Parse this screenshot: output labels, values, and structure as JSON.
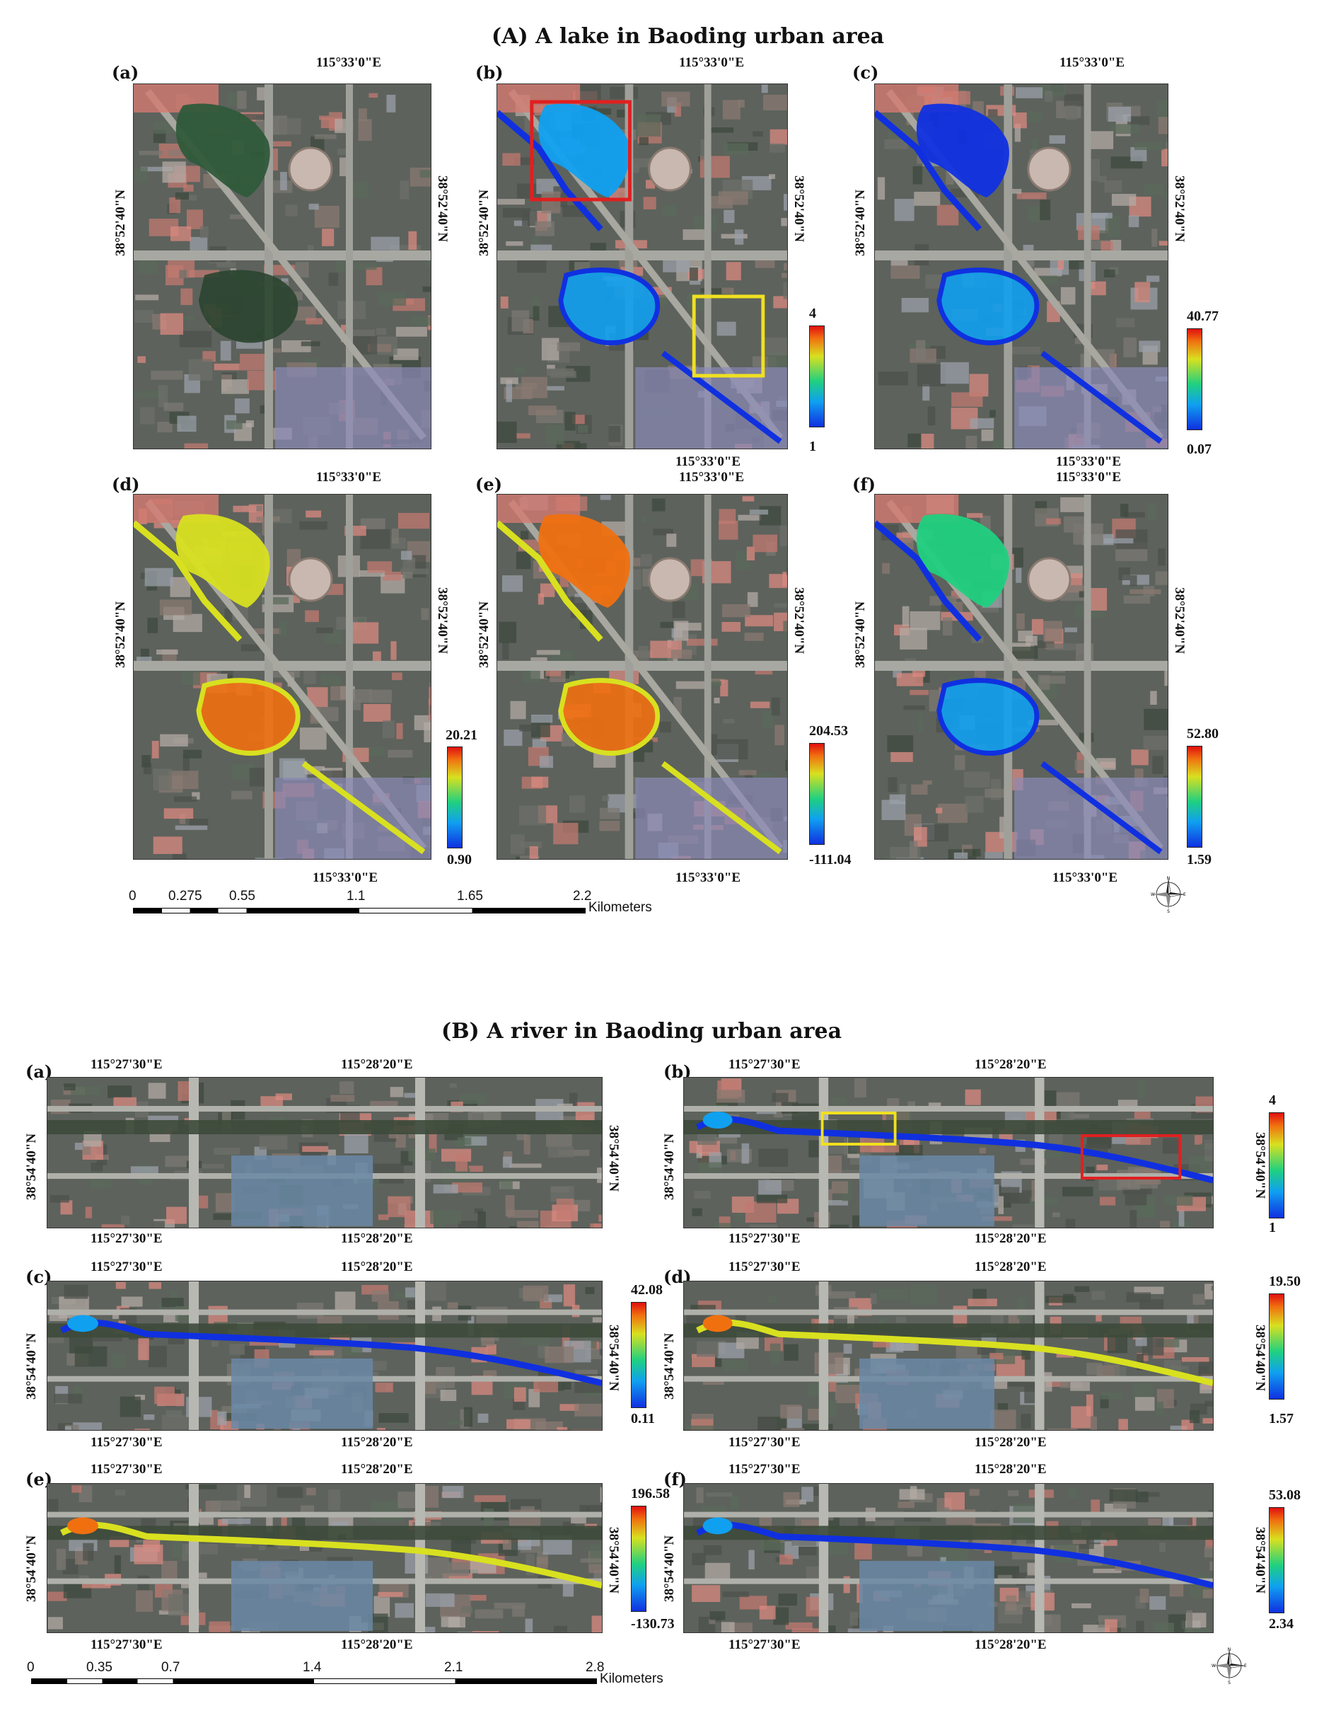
{
  "sectionA": {
    "title": "(A) A lake in Baoding urban area",
    "lon": "115°33'0\"E",
    "lat": "38°52'40\"N",
    "panels": {
      "a": {
        "label": "(a)"
      },
      "b": {
        "label": "(b)",
        "cmax": "4",
        "cmin": "1"
      },
      "c": {
        "label": "(c)",
        "cmax": "40.77",
        "cmin": "0.07"
      },
      "d": {
        "label": "(d)",
        "cmax": "20.21",
        "cmin": "0.90"
      },
      "e": {
        "label": "(e)",
        "cmax": "204.53",
        "cmin": "-111.04"
      },
      "f": {
        "label": "(f)",
        "cmax": "52.80",
        "cmin": "1.59"
      }
    },
    "scalebar": {
      "ticks": [
        "0",
        "0.275",
        "0.55",
        "1.1",
        "1.65",
        "2.2"
      ],
      "unit": "Kilometers"
    }
  },
  "sectionB": {
    "title": "(B) A river in Baoding urban area",
    "lon1": "115°27'30\"E",
    "lon2": "115°28'20\"E",
    "lat": "38°54'40\"N",
    "panels": {
      "a": {
        "label": "(a)"
      },
      "b": {
        "label": "(b)",
        "cmax": "4",
        "cmin": "1"
      },
      "c": {
        "label": "(c)",
        "cmax": "42.08",
        "cmin": "0.11"
      },
      "d": {
        "label": "(d)",
        "cmax": "19.50",
        "cmin": "1.57"
      },
      "e": {
        "label": "(e)",
        "cmax": "196.58",
        "cmin": "-130.73"
      },
      "f": {
        "label": "(f)",
        "cmax": "53.08",
        "cmin": "2.34"
      }
    },
    "scalebar": {
      "ticks": [
        "0",
        "0.35",
        "0.7",
        "1.4",
        "2.1",
        "2.8"
      ],
      "unit": "Kilometers"
    }
  },
  "compass": {
    "n": "N",
    "s": "S",
    "e": "E",
    "w": "W"
  },
  "colors": {
    "blue": "#1030e0",
    "cyan": "#10a0f0",
    "green": "#20d080",
    "yellow": "#d8e020",
    "orange": "#f07010",
    "red": "#e01010",
    "box_red": "#e02020",
    "box_yellow": "#f0e020"
  }
}
